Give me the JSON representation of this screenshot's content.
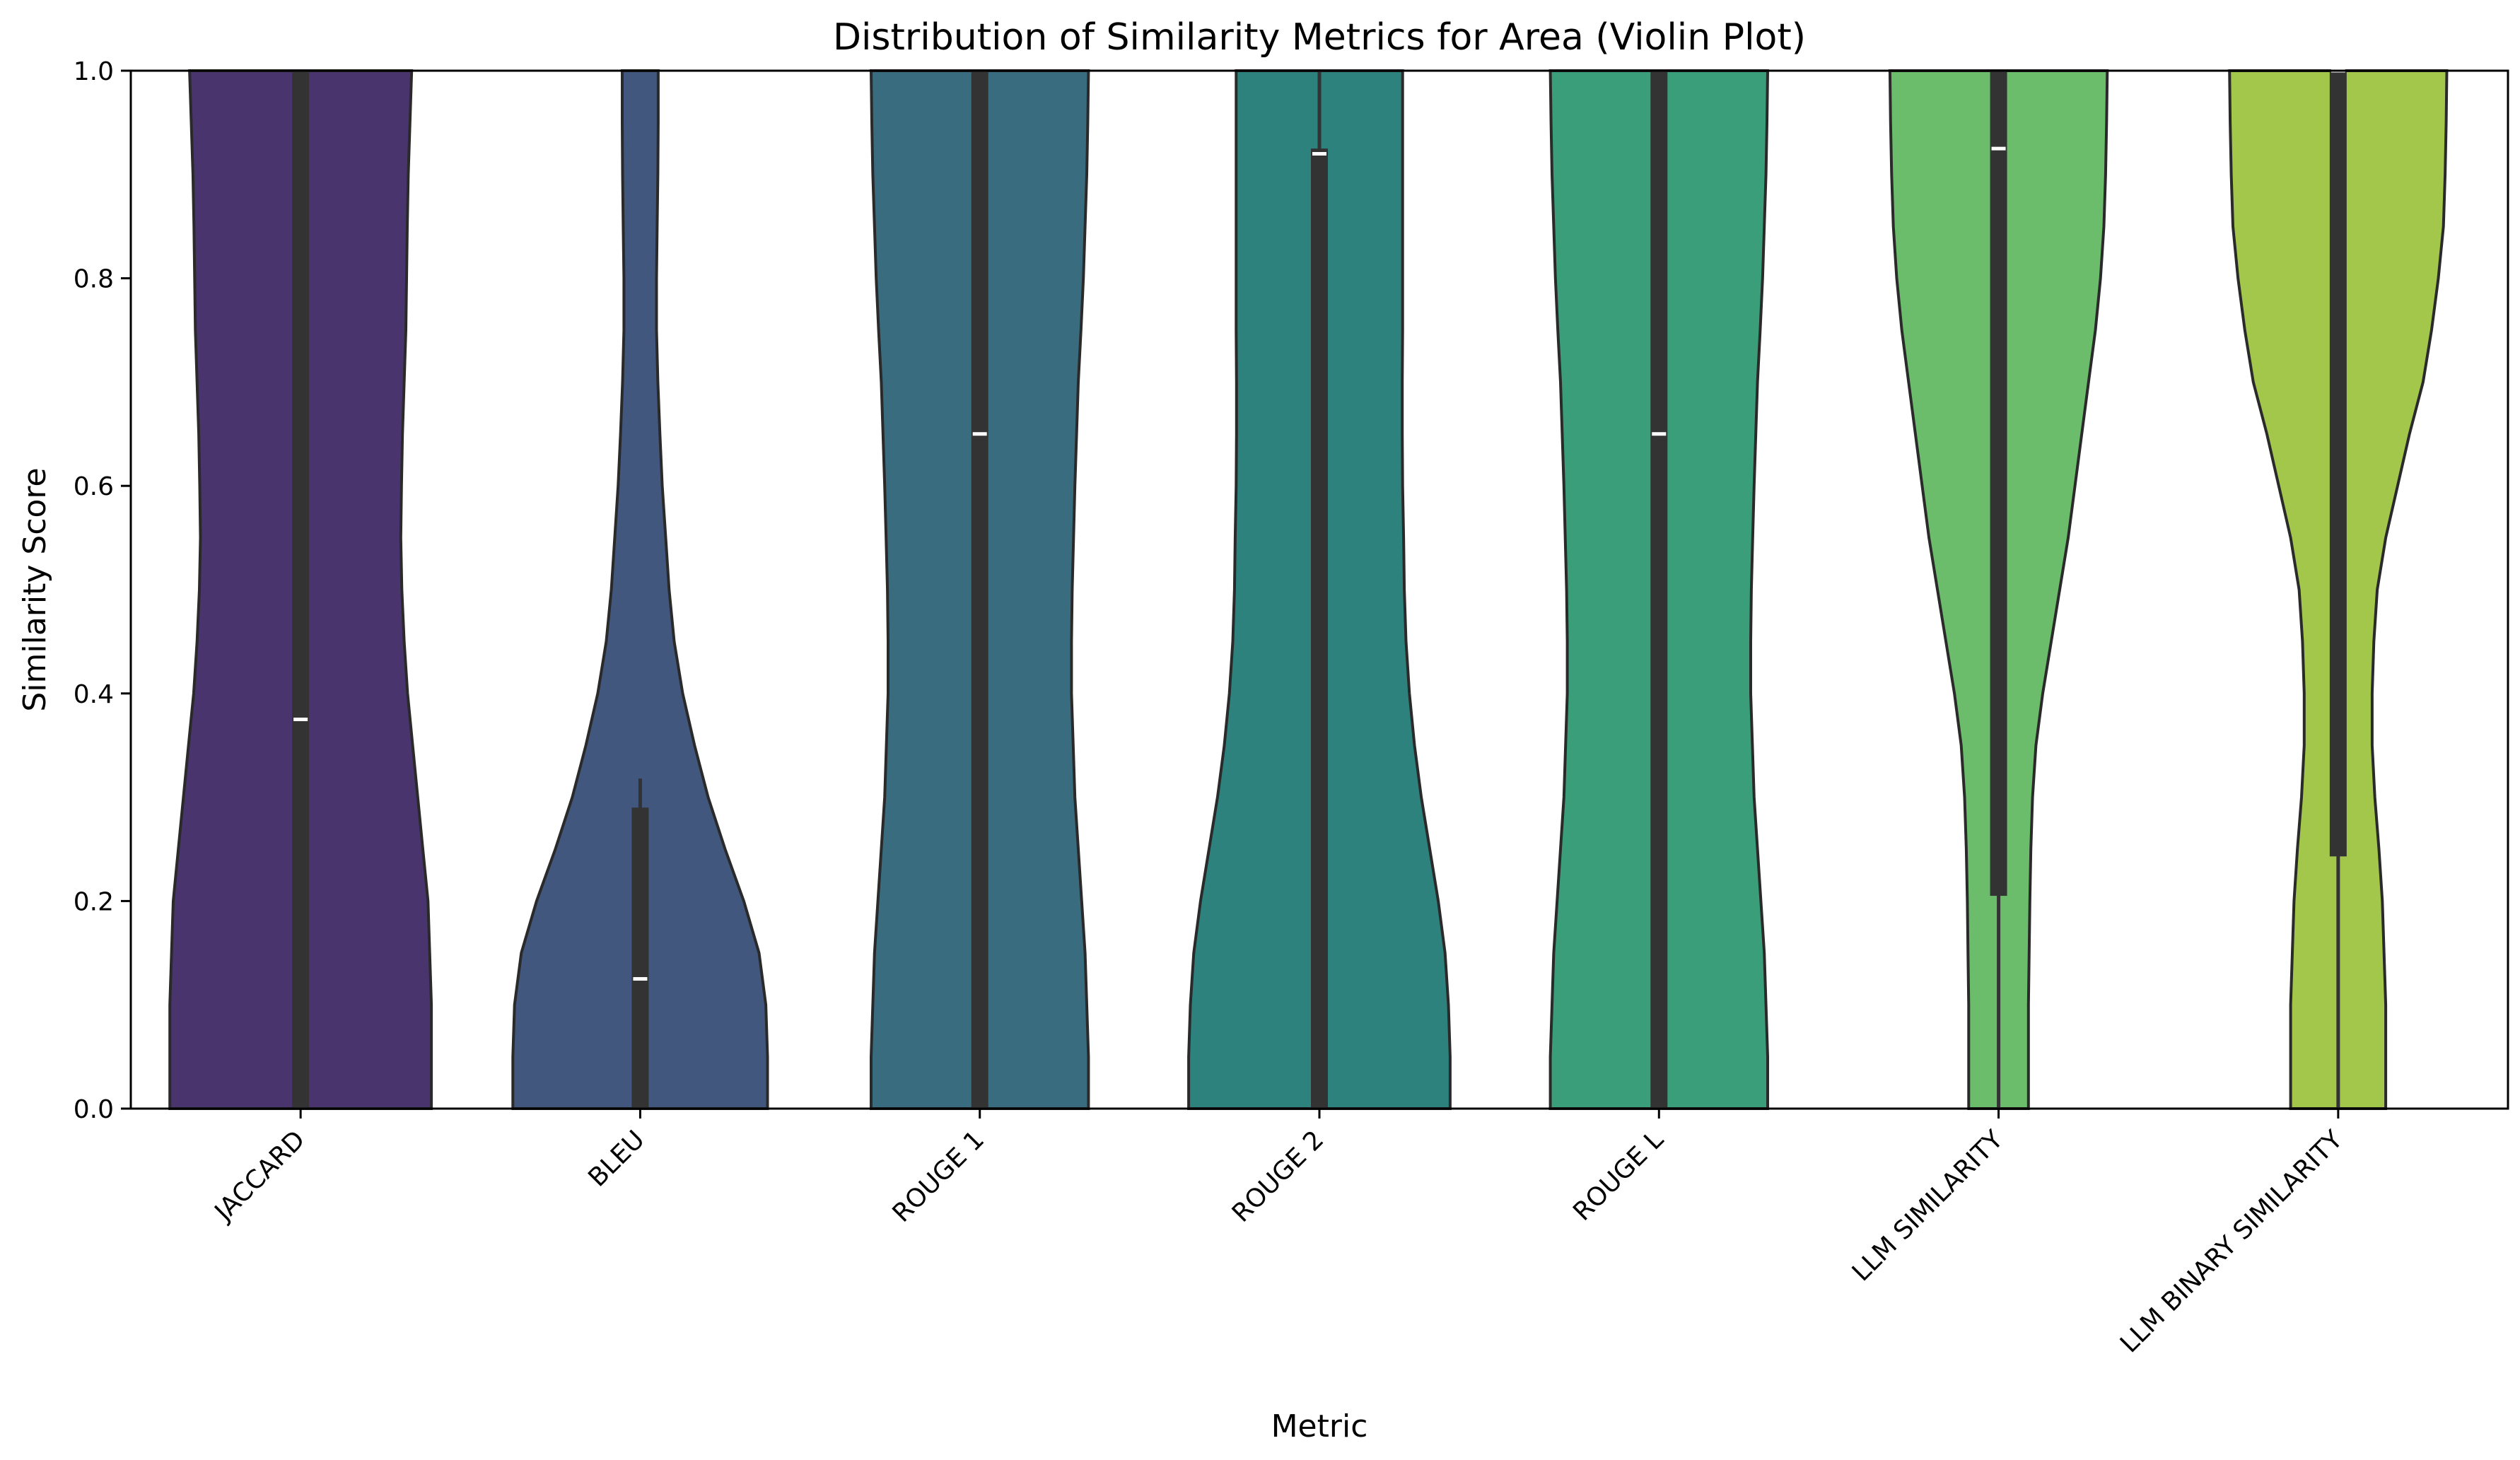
{
  "chart_data": {
    "type": "violin",
    "title": "Distribution of Similarity Metrics for Area (Violin Plot)",
    "xlabel": "Metric",
    "ylabel": "Similarity Score",
    "ylim": [
      0,
      1
    ],
    "yticks": [
      0.0,
      0.2,
      0.4,
      0.6,
      0.8,
      1.0
    ],
    "ytick_labels": [
      "0.0",
      "0.2",
      "0.4",
      "0.6",
      "0.8",
      "1.0"
    ],
    "grid": false,
    "legend": "none",
    "categories": [
      "JACCARD",
      "BLEU",
      "ROUGE 1",
      "ROUGE 2",
      "ROUGE L",
      "LLM SIMILARITY",
      "LLM BINARY SIMILARITY"
    ],
    "violins": [
      {
        "name": "JACCARD",
        "color": "#4a346e",
        "density": [
          [
            0.0,
            0.385
          ],
          [
            0.05,
            0.385
          ],
          [
            0.1,
            0.385
          ],
          [
            0.15,
            0.38
          ],
          [
            0.2,
            0.375
          ],
          [
            0.25,
            0.36
          ],
          [
            0.3,
            0.345
          ],
          [
            0.35,
            0.33
          ],
          [
            0.4,
            0.315
          ],
          [
            0.45,
            0.305
          ],
          [
            0.5,
            0.298
          ],
          [
            0.55,
            0.295
          ],
          [
            0.6,
            0.297
          ],
          [
            0.65,
            0.3
          ],
          [
            0.7,
            0.305
          ],
          [
            0.75,
            0.31
          ],
          [
            0.8,
            0.312
          ],
          [
            0.85,
            0.314
          ],
          [
            0.9,
            0.317
          ],
          [
            0.95,
            0.322
          ],
          [
            1.0,
            0.327
          ]
        ],
        "min": 0.0,
        "q1": 0.0,
        "median": 0.375,
        "q3": 1.0,
        "max": 1.0
      },
      {
        "name": "BLEU",
        "color": "#42577d",
        "density": [
          [
            0.0,
            0.375
          ],
          [
            0.05,
            0.375
          ],
          [
            0.1,
            0.37
          ],
          [
            0.15,
            0.35
          ],
          [
            0.2,
            0.305
          ],
          [
            0.25,
            0.25
          ],
          [
            0.3,
            0.2
          ],
          [
            0.35,
            0.16
          ],
          [
            0.4,
            0.125
          ],
          [
            0.45,
            0.1
          ],
          [
            0.5,
            0.085
          ],
          [
            0.55,
            0.075
          ],
          [
            0.6,
            0.065
          ],
          [
            0.65,
            0.058
          ],
          [
            0.7,
            0.052
          ],
          [
            0.75,
            0.048
          ],
          [
            0.8,
            0.048
          ],
          [
            0.85,
            0.05
          ],
          [
            0.9,
            0.052
          ],
          [
            0.95,
            0.053
          ],
          [
            1.0,
            0.053
          ]
        ],
        "min": 0.0,
        "q1": 0.0,
        "median": 0.125,
        "q3": 0.29,
        "max": 0.318
      },
      {
        "name": "ROUGE 1",
        "color": "#3a6c80",
        "density": [
          [
            0.0,
            0.32
          ],
          [
            0.05,
            0.32
          ],
          [
            0.1,
            0.315
          ],
          [
            0.15,
            0.31
          ],
          [
            0.2,
            0.3
          ],
          [
            0.25,
            0.29
          ],
          [
            0.3,
            0.28
          ],
          [
            0.35,
            0.275
          ],
          [
            0.4,
            0.27
          ],
          [
            0.45,
            0.27
          ],
          [
            0.5,
            0.272
          ],
          [
            0.55,
            0.276
          ],
          [
            0.6,
            0.28
          ],
          [
            0.65,
            0.285
          ],
          [
            0.7,
            0.29
          ],
          [
            0.75,
            0.298
          ],
          [
            0.8,
            0.305
          ],
          [
            0.85,
            0.31
          ],
          [
            0.9,
            0.315
          ],
          [
            0.95,
            0.318
          ],
          [
            1.0,
            0.32
          ]
        ],
        "min": 0.0,
        "q1": 0.0,
        "median": 0.65,
        "q3": 1.0,
        "max": 1.0
      },
      {
        "name": "ROUGE 2",
        "color": "#2e827d",
        "density": [
          [
            0.0,
            0.385
          ],
          [
            0.05,
            0.385
          ],
          [
            0.1,
            0.38
          ],
          [
            0.15,
            0.37
          ],
          [
            0.2,
            0.35
          ],
          [
            0.25,
            0.325
          ],
          [
            0.3,
            0.3
          ],
          [
            0.35,
            0.28
          ],
          [
            0.4,
            0.265
          ],
          [
            0.45,
            0.255
          ],
          [
            0.5,
            0.25
          ],
          [
            0.55,
            0.248
          ],
          [
            0.6,
            0.245
          ],
          [
            0.65,
            0.244
          ],
          [
            0.7,
            0.244
          ],
          [
            0.75,
            0.245
          ],
          [
            0.8,
            0.245
          ],
          [
            0.85,
            0.245
          ],
          [
            0.9,
            0.245
          ],
          [
            0.95,
            0.245
          ],
          [
            1.0,
            0.245
          ]
        ],
        "min": 0.0,
        "q1": 0.0,
        "median": 0.92,
        "q3": 0.925,
        "max": 1.0
      },
      {
        "name": "ROUGE L",
        "color": "#3a9e7a",
        "density": [
          [
            0.0,
            0.32
          ],
          [
            0.05,
            0.32
          ],
          [
            0.1,
            0.315
          ],
          [
            0.15,
            0.31
          ],
          [
            0.2,
            0.3
          ],
          [
            0.25,
            0.29
          ],
          [
            0.3,
            0.28
          ],
          [
            0.35,
            0.275
          ],
          [
            0.4,
            0.27
          ],
          [
            0.45,
            0.27
          ],
          [
            0.5,
            0.272
          ],
          [
            0.55,
            0.276
          ],
          [
            0.6,
            0.28
          ],
          [
            0.65,
            0.285
          ],
          [
            0.7,
            0.29
          ],
          [
            0.75,
            0.298
          ],
          [
            0.8,
            0.305
          ],
          [
            0.85,
            0.31
          ],
          [
            0.9,
            0.315
          ],
          [
            0.95,
            0.318
          ],
          [
            1.0,
            0.32
          ]
        ],
        "min": 0.0,
        "q1": 0.0,
        "median": 0.65,
        "q3": 1.0,
        "max": 1.0
      },
      {
        "name": "LLM SIMILARITY",
        "color": "#6bbd6b",
        "density": [
          [
            0.0,
            0.088
          ],
          [
            0.05,
            0.088
          ],
          [
            0.1,
            0.088
          ],
          [
            0.15,
            0.09
          ],
          [
            0.2,
            0.092
          ],
          [
            0.25,
            0.095
          ],
          [
            0.3,
            0.1
          ],
          [
            0.35,
            0.11
          ],
          [
            0.4,
            0.13
          ],
          [
            0.45,
            0.155
          ],
          [
            0.5,
            0.18
          ],
          [
            0.55,
            0.205
          ],
          [
            0.6,
            0.225
          ],
          [
            0.65,
            0.245
          ],
          [
            0.7,
            0.265
          ],
          [
            0.75,
            0.285
          ],
          [
            0.8,
            0.3
          ],
          [
            0.85,
            0.31
          ],
          [
            0.9,
            0.315
          ],
          [
            0.95,
            0.318
          ],
          [
            1.0,
            0.32
          ]
        ],
        "min": 0.0,
        "q1": 0.205,
        "median": 0.925,
        "q3": 1.0,
        "max": 1.0
      },
      {
        "name": "LLM BINARY SIMILARITY",
        "color": "#a2c74a",
        "density": [
          [
            0.0,
            0.14
          ],
          [
            0.05,
            0.14
          ],
          [
            0.1,
            0.14
          ],
          [
            0.15,
            0.135
          ],
          [
            0.2,
            0.13
          ],
          [
            0.25,
            0.12
          ],
          [
            0.3,
            0.108
          ],
          [
            0.35,
            0.1
          ],
          [
            0.4,
            0.1
          ],
          [
            0.45,
            0.105
          ],
          [
            0.5,
            0.115
          ],
          [
            0.55,
            0.14
          ],
          [
            0.6,
            0.175
          ],
          [
            0.65,
            0.21
          ],
          [
            0.7,
            0.25
          ],
          [
            0.75,
            0.275
          ],
          [
            0.8,
            0.295
          ],
          [
            0.85,
            0.31
          ],
          [
            0.9,
            0.315
          ],
          [
            0.95,
            0.318
          ],
          [
            1.0,
            0.32
          ]
        ],
        "min": 0.0,
        "q1": 0.243,
        "median": 1.0,
        "q3": 1.0,
        "max": 1.0
      }
    ]
  }
}
